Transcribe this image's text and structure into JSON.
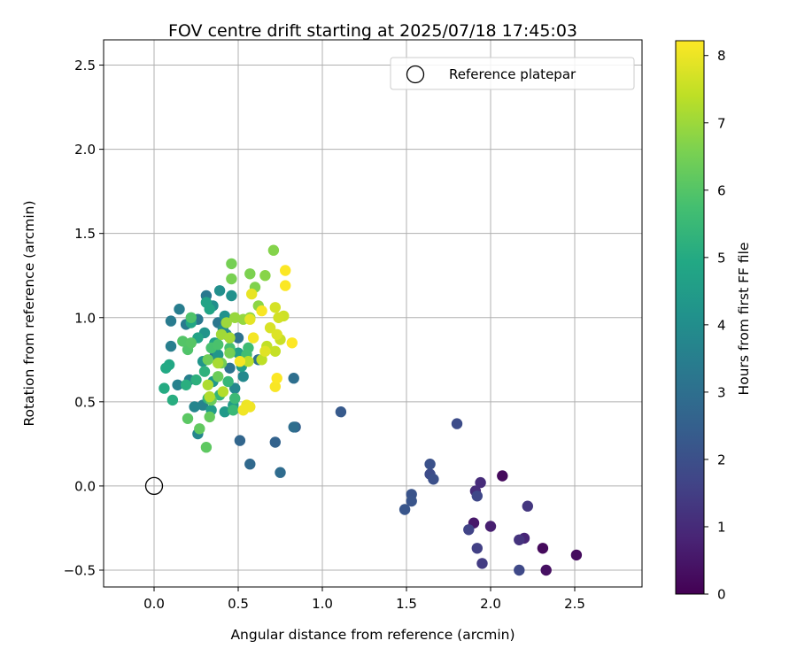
{
  "chart_data": {
    "type": "scatter",
    "title": "FOV centre drift starting at 2025/07/18 17:45:03",
    "xlabel": "Angular distance from reference (arcmin)",
    "ylabel": "Rotation from reference (arcmin)",
    "xlim": [
      -0.3,
      2.9
    ],
    "ylim": [
      -0.6,
      2.65
    ],
    "x_ticks": [
      0.0,
      0.5,
      1.0,
      1.5,
      2.0,
      2.5
    ],
    "y_ticks": [
      -0.5,
      0.0,
      0.5,
      1.0,
      1.5,
      2.0,
      2.5
    ],
    "x_tick_labels": [
      "0.0",
      "0.5",
      "1.0",
      "1.5",
      "2.0",
      "2.5"
    ],
    "y_tick_labels": [
      "−0.5",
      "0.0",
      "0.5",
      "1.0",
      "1.5",
      "2.0",
      "2.5"
    ],
    "grid": true,
    "legend": {
      "position": "top-right",
      "entries": [
        "Reference platepar"
      ]
    },
    "reference_point": {
      "x": 0.0,
      "y": 0.0
    },
    "colorbar": {
      "label": "Hours from first FF file",
      "min": 0,
      "max": 8.22,
      "ticks": [
        0,
        1,
        2,
        3,
        4,
        5,
        6,
        7,
        8
      ],
      "tick_labels": [
        "0",
        "1",
        "2",
        "3",
        "4",
        "5",
        "6",
        "7",
        "8"
      ],
      "colormap": "viridis"
    },
    "points": [
      [
        2.07,
        0.06,
        0.2
      ],
      [
        2.31,
        -0.37,
        0.2
      ],
      [
        2.51,
        -0.41,
        0.25
      ],
      [
        2.33,
        -0.5,
        0.35
      ],
      [
        1.9,
        -0.22,
        0.55
      ],
      [
        2.0,
        -0.24,
        0.7
      ],
      [
        2.2,
        -0.31,
        0.85
      ],
      [
        1.94,
        0.02,
        1.0
      ],
      [
        1.91,
        -0.03,
        1.05
      ],
      [
        2.17,
        -0.32,
        1.2
      ],
      [
        2.22,
        -0.12,
        1.3
      ],
      [
        1.95,
        -0.46,
        1.45
      ],
      [
        1.92,
        -0.37,
        1.55
      ],
      [
        1.87,
        -0.26,
        1.65
      ],
      [
        1.92,
        -0.06,
        1.75
      ],
      [
        2.17,
        -0.5,
        1.8
      ],
      [
        1.8,
        0.37,
        1.9
      ],
      [
        1.64,
        0.07,
        1.9
      ],
      [
        1.66,
        0.04,
        2.0
      ],
      [
        1.64,
        0.13,
        2.05
      ],
      [
        1.53,
        -0.05,
        2.1
      ],
      [
        1.53,
        -0.09,
        2.15
      ],
      [
        1.49,
        -0.14,
        2.2
      ],
      [
        1.11,
        0.44,
        2.3
      ],
      [
        0.84,
        0.35,
        2.5
      ],
      [
        0.72,
        0.26,
        2.6
      ],
      [
        0.51,
        0.27,
        2.7
      ],
      [
        0.57,
        0.13,
        2.8
      ],
      [
        0.75,
        0.08,
        2.9
      ],
      [
        0.83,
        0.35,
        2.95
      ],
      [
        0.83,
        0.64,
        3.0
      ],
      [
        0.62,
        0.75,
        3.05
      ],
      [
        0.5,
        0.88,
        3.1
      ],
      [
        0.45,
        0.7,
        3.15
      ],
      [
        0.36,
        0.77,
        3.2
      ],
      [
        0.38,
        0.97,
        3.25
      ],
      [
        0.31,
        1.13,
        3.3
      ],
      [
        0.26,
        0.99,
        3.3
      ],
      [
        0.19,
        0.96,
        3.35
      ],
      [
        0.1,
        0.98,
        3.4
      ],
      [
        0.15,
        1.05,
        3.45
      ],
      [
        0.1,
        0.83,
        3.5
      ],
      [
        0.21,
        0.63,
        3.55
      ],
      [
        0.14,
        0.6,
        3.6
      ],
      [
        0.29,
        0.48,
        3.65
      ],
      [
        0.24,
        0.47,
        3.7
      ],
      [
        0.26,
        0.31,
        3.75
      ],
      [
        0.48,
        0.58,
        3.8
      ],
      [
        0.53,
        0.65,
        3.85
      ],
      [
        0.43,
        0.9,
        3.9
      ],
      [
        0.41,
        0.93,
        3.95
      ],
      [
        0.35,
        1.07,
        4.0
      ],
      [
        0.39,
        1.16,
        4.05
      ],
      [
        0.46,
        1.13,
        4.1
      ],
      [
        0.42,
        1.01,
        4.15
      ],
      [
        0.3,
        0.91,
        4.2
      ],
      [
        0.29,
        0.74,
        4.25
      ],
      [
        0.38,
        0.78,
        4.3
      ],
      [
        0.35,
        0.62,
        4.35
      ],
      [
        0.42,
        0.44,
        4.4
      ],
      [
        0.34,
        0.45,
        4.45
      ],
      [
        0.47,
        0.48,
        4.5
      ],
      [
        0.52,
        0.71,
        4.55
      ],
      [
        0.5,
        0.79,
        4.6
      ],
      [
        0.36,
        0.85,
        4.65
      ],
      [
        0.26,
        0.88,
        4.7
      ],
      [
        0.31,
        1.09,
        4.75
      ],
      [
        0.33,
        1.05,
        4.8
      ],
      [
        0.22,
        0.97,
        4.85
      ],
      [
        0.09,
        0.72,
        4.9
      ],
      [
        0.07,
        0.7,
        4.95
      ],
      [
        0.06,
        0.58,
        5.0
      ],
      [
        0.11,
        0.51,
        5.1
      ],
      [
        0.19,
        0.6,
        5.15
      ],
      [
        0.25,
        0.63,
        5.2
      ],
      [
        0.3,
        0.68,
        5.25
      ],
      [
        0.32,
        0.52,
        5.3
      ],
      [
        0.39,
        0.54,
        5.35
      ],
      [
        0.44,
        0.62,
        5.45
      ],
      [
        0.47,
        0.45,
        5.5
      ],
      [
        0.48,
        0.52,
        5.55
      ],
      [
        0.56,
        0.82,
        5.6
      ],
      [
        0.55,
        0.78,
        5.7
      ],
      [
        0.45,
        0.82,
        5.75
      ],
      [
        0.34,
        0.82,
        5.8
      ],
      [
        0.38,
        0.84,
        5.85
      ],
      [
        0.22,
        1.0,
        5.9
      ],
      [
        0.2,
        0.81,
        5.95
      ],
      [
        0.17,
        0.86,
        6.0
      ],
      [
        0.22,
        0.85,
        6.05
      ],
      [
        0.2,
        0.4,
        6.1
      ],
      [
        0.31,
        0.23,
        6.15
      ],
      [
        0.27,
        0.34,
        6.2
      ],
      [
        0.33,
        0.41,
        6.25
      ],
      [
        0.34,
        0.51,
        6.3
      ],
      [
        0.38,
        0.65,
        6.35
      ],
      [
        0.32,
        0.75,
        6.4
      ],
      [
        0.4,
        0.73,
        6.45
      ],
      [
        0.45,
        0.79,
        6.5
      ],
      [
        0.46,
        1.32,
        6.5
      ],
      [
        0.46,
        1.23,
        6.55
      ],
      [
        0.57,
        1.26,
        6.6
      ],
      [
        0.6,
        1.18,
        6.65
      ],
      [
        0.71,
        1.4,
        6.7
      ],
      [
        0.66,
        1.25,
        6.75
      ],
      [
        0.62,
        1.07,
        6.8
      ],
      [
        0.57,
        1.0,
        6.85
      ],
      [
        0.53,
        0.99,
        6.9
      ],
      [
        0.48,
        1.0,
        6.95
      ],
      [
        0.43,
        0.97,
        7.0
      ],
      [
        0.4,
        0.9,
        7.05
      ],
      [
        0.45,
        0.88,
        7.1
      ],
      [
        0.38,
        0.73,
        7.15
      ],
      [
        0.32,
        0.6,
        7.2
      ],
      [
        0.33,
        0.53,
        7.25
      ],
      [
        0.41,
        0.56,
        7.3
      ],
      [
        0.56,
        0.74,
        7.35
      ],
      [
        0.64,
        0.75,
        7.4
      ],
      [
        0.67,
        0.83,
        7.45
      ],
      [
        0.72,
        0.8,
        7.5
      ],
      [
        0.75,
        0.87,
        7.55
      ],
      [
        0.77,
        1.01,
        7.6
      ],
      [
        0.74,
        1.0,
        7.65
      ],
      [
        0.72,
        1.06,
        7.7
      ],
      [
        0.69,
        0.94,
        7.75
      ],
      [
        0.73,
        0.9,
        7.8
      ],
      [
        0.66,
        0.8,
        7.85
      ],
      [
        0.57,
        0.99,
        7.9
      ],
      [
        0.58,
        1.14,
        7.95
      ],
      [
        0.55,
        0.48,
        8.0
      ],
      [
        0.57,
        0.47,
        8.05
      ],
      [
        0.53,
        0.45,
        8.05
      ],
      [
        0.51,
        0.74,
        8.1
      ],
      [
        0.59,
        0.88,
        8.1
      ],
      [
        0.64,
        1.04,
        8.15
      ],
      [
        0.72,
        0.59,
        8.15
      ],
      [
        0.73,
        0.64,
        8.2
      ],
      [
        0.78,
        1.19,
        8.2
      ],
      [
        0.78,
        1.28,
        8.2
      ],
      [
        0.82,
        0.85,
        8.22
      ]
    ]
  }
}
